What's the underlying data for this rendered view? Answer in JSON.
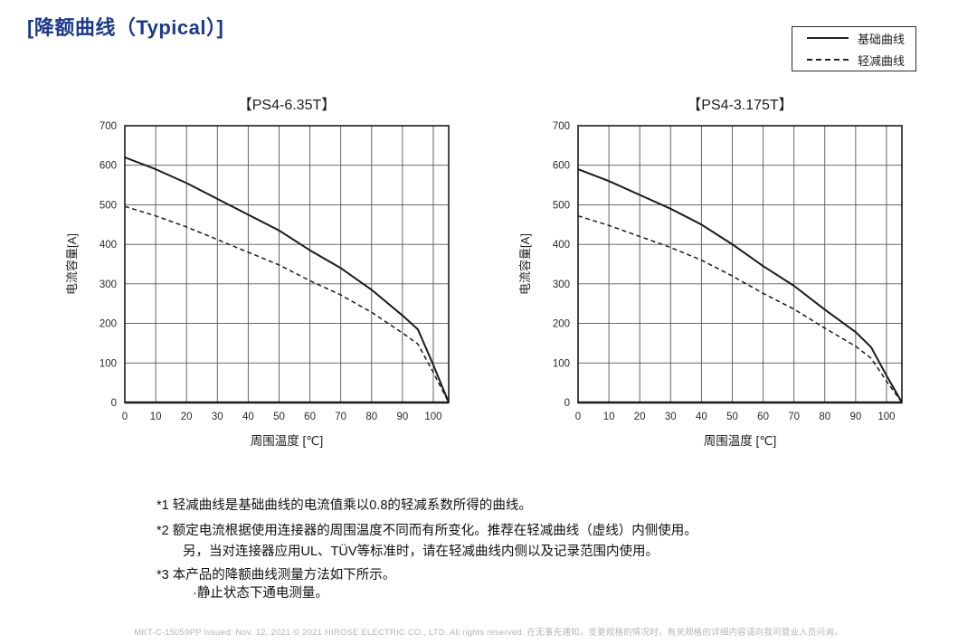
{
  "page": {
    "title": "[降额曲线（Typical）]"
  },
  "colors": {
    "title_accent": "#1b3a8c",
    "curve": "#1a1a1a",
    "grid": "#555555",
    "axis": "#1a1a1a",
    "footer_text": "#b5b5b5"
  },
  "legend": {
    "items": [
      {
        "label": "基础曲线",
        "style": "solid"
      },
      {
        "label": "轻减曲线",
        "style": "dashed"
      }
    ]
  },
  "chart_data": [
    {
      "type": "line",
      "title": "【PS4-6.35T】",
      "xlabel": "周围温度 [℃]",
      "ylabel": "电流容量[A]",
      "xlim": [
        0,
        105
      ],
      "ylim": [
        0,
        700
      ],
      "xticks": [
        0,
        10,
        20,
        30,
        40,
        50,
        60,
        70,
        80,
        90,
        100
      ],
      "yticks": [
        0,
        100,
        200,
        300,
        400,
        500,
        600,
        700
      ],
      "grid": true,
      "legend_position": "top-right-of-page",
      "x": [
        0,
        10,
        20,
        30,
        40,
        50,
        60,
        70,
        80,
        90,
        95,
        100,
        105
      ],
      "series": [
        {
          "name": "基础曲线",
          "style": "solid",
          "values": [
            620,
            590,
            555,
            515,
            475,
            435,
            385,
            340,
            285,
            220,
            185,
            95,
            0
          ]
        },
        {
          "name": "轻减曲线",
          "style": "dashed",
          "values": [
            496,
            472,
            444,
            412,
            380,
            348,
            308,
            272,
            228,
            176,
            148,
            76,
            0
          ]
        }
      ]
    },
    {
      "type": "line",
      "title": "【PS4-3.175T】",
      "xlabel": "周围温度 [℃]",
      "ylabel": "电流容量[A]",
      "xlim": [
        0,
        105
      ],
      "ylim": [
        0,
        700
      ],
      "xticks": [
        0,
        10,
        20,
        30,
        40,
        50,
        60,
        70,
        80,
        90,
        100
      ],
      "yticks": [
        0,
        100,
        200,
        300,
        400,
        500,
        600,
        700
      ],
      "grid": true,
      "legend_position": "top-right-of-page",
      "x": [
        0,
        10,
        20,
        30,
        40,
        50,
        60,
        70,
        80,
        90,
        95,
        100,
        105
      ],
      "series": [
        {
          "name": "基础曲线",
          "style": "solid",
          "values": [
            590,
            560,
            525,
            490,
            450,
            400,
            345,
            295,
            235,
            178,
            140,
            68,
            0
          ]
        },
        {
          "name": "轻减曲线",
          "style": "dashed",
          "values": [
            472,
            448,
            420,
            392,
            360,
            320,
            276,
            236,
            188,
            142,
            112,
            54,
            0
          ]
        }
      ]
    }
  ],
  "notes": {
    "lines": [
      {
        "text": "*1 轻减曲线是基础曲线的电流值乘以0.8的轻减系数所得的曲线。"
      },
      {
        "text": "*2 额定电流根据使用连接器的周围温度不同而有所变化。推荐在轻减曲线（虚线）内侧使用。"
      },
      {
        "text": "另，当对连接器应用UL、TÜV等标准时，请在轻减曲线内侧以及记录范围内使用。"
      },
      {
        "text": "*3 本产品的降额曲线测量方法如下所示。"
      },
      {
        "text": "·静止状态下通电测量。"
      }
    ]
  },
  "footer": {
    "text": "MKT-C-15059PP  Issued: Nov. 12, 2021  © 2021 HIROSE ELECTRIC CO., LTD. All rights reserved.  在无事先通知，变更规格的情况时，有关规格的详细内容请向我司营业人员问询。"
  }
}
